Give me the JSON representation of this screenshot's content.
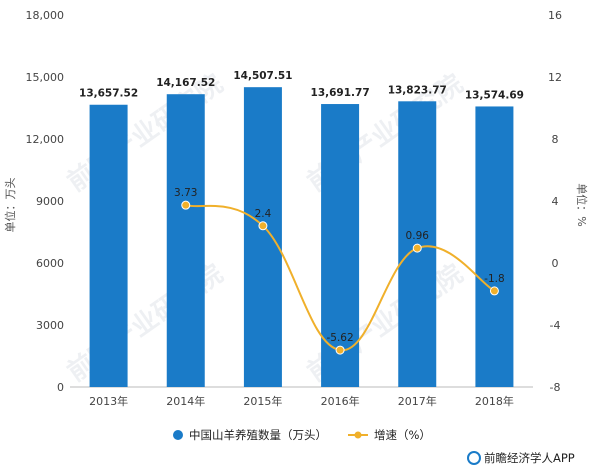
{
  "chart_data": {
    "type": "bar",
    "categories": [
      "2013年",
      "2014年",
      "2015年",
      "2016年",
      "2017年",
      "2018年"
    ],
    "series": [
      {
        "name": "中国山羊养殖数量（万头）",
        "type": "bar",
        "axis": "left",
        "values": [
          13657.52,
          14167.52,
          14507.51,
          13691.77,
          13823.77,
          13574.69
        ],
        "labels": [
          "13,657.52",
          "14,167.52",
          "14,507.51",
          "13,691.77",
          "13,823.77",
          "13,574.69"
        ]
      },
      {
        "name": "增速（%）",
        "type": "line",
        "axis": "right",
        "values": [
          null,
          3.73,
          2.4,
          -5.62,
          0.96,
          -1.8
        ],
        "labels": [
          "",
          "3.73",
          "2.4",
          "-5.62",
          "0.96",
          "-1.8"
        ]
      }
    ],
    "ylabel": "单位：万头",
    "ylabel_right": "单位：%",
    "ylim": [
      0,
      18000
    ],
    "ylim_right": [
      -8,
      16
    ],
    "yticks": [
      "0",
      "3000",
      "6000",
      "9000",
      "12,000",
      "15,000",
      "18,000"
    ],
    "yticks_right": [
      "-8",
      "-4",
      "0",
      "4",
      "8",
      "12",
      "16"
    ],
    "colors": {
      "bar": "#1a7bc8",
      "line": "#f0b02b"
    },
    "grid": false,
    "legend": "bottom"
  },
  "watermark": "前瞻产业研究院",
  "footer": {
    "logo": "前瞻经济学人APP"
  }
}
